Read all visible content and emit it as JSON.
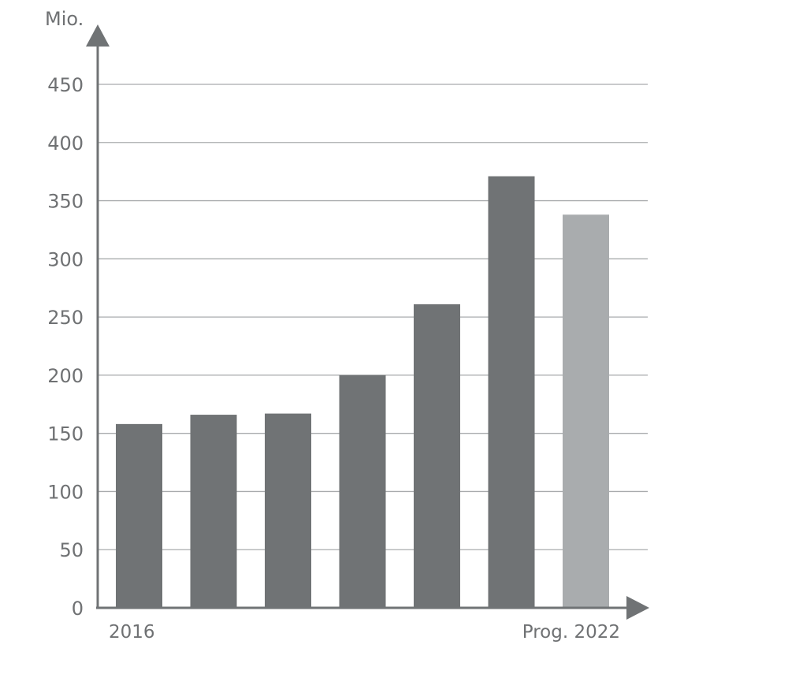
{
  "chart_data": {
    "type": "bar",
    "unit_label": "Mio.",
    "categories": [
      "2016",
      "",
      "",
      "",
      "",
      "",
      "Prog. 2022"
    ],
    "values": [
      158,
      166,
      167,
      200,
      261,
      371,
      338
    ],
    "bar_colors": [
      "#707375",
      "#707375",
      "#707375",
      "#707375",
      "#707375",
      "#707375",
      "#a9acae"
    ],
    "yticks": [
      0,
      50,
      100,
      150,
      200,
      250,
      300,
      350,
      400,
      450
    ],
    "ylim": [
      0,
      450
    ],
    "grid": true,
    "legend": "none"
  },
  "colors": {
    "axis": "#707375",
    "grid": "#a9abad",
    "text": "#6f7173"
  }
}
